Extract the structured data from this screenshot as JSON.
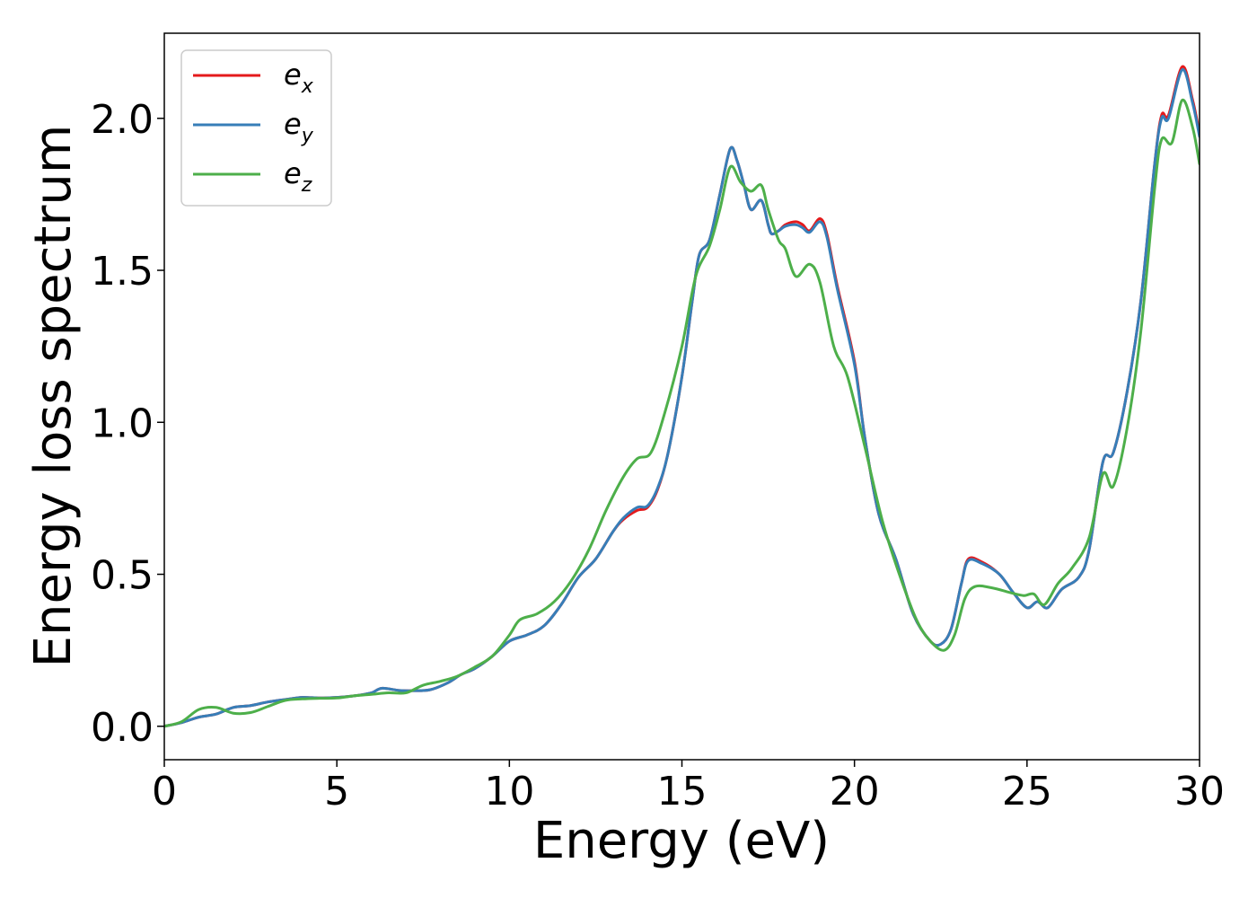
{
  "chart_data": {
    "type": "line",
    "xlabel": "Energy (eV)",
    "ylabel": "Energy loss spectrum",
    "xlim": [
      0,
      30
    ],
    "ylim": [
      -0.11,
      2.28
    ],
    "xticks": [
      0,
      5,
      10,
      15,
      20,
      25,
      30
    ],
    "xtick_labels": [
      "0",
      "5",
      "10",
      "15",
      "20",
      "25",
      "30"
    ],
    "yticks": [
      0.0,
      0.5,
      1.0,
      1.5,
      2.0
    ],
    "ytick_labels": [
      "0.0",
      "0.5",
      "1.0",
      "1.5",
      "2.0"
    ],
    "grid": false,
    "legend_position": "top-left",
    "series": [
      {
        "name": "e_x",
        "legend_main": "e",
        "legend_sub": "x",
        "color": "#e41a1c",
        "points": [
          [
            0,
            0.0
          ],
          [
            0.5,
            0.012
          ],
          [
            1,
            0.03
          ],
          [
            1.5,
            0.04
          ],
          [
            2,
            0.062
          ],
          [
            2.5,
            0.068
          ],
          [
            3,
            0.08
          ],
          [
            3.5,
            0.088
          ],
          [
            4,
            0.095
          ],
          [
            4.5,
            0.093
          ],
          [
            5,
            0.095
          ],
          [
            5.5,
            0.1
          ],
          [
            6,
            0.11
          ],
          [
            6.3,
            0.125
          ],
          [
            6.8,
            0.118
          ],
          [
            7.2,
            0.117
          ],
          [
            7.7,
            0.12
          ],
          [
            8.2,
            0.142
          ],
          [
            8.6,
            0.17
          ],
          [
            9,
            0.19
          ],
          [
            9.5,
            0.23
          ],
          [
            10,
            0.28
          ],
          [
            10.5,
            0.3
          ],
          [
            11,
            0.33
          ],
          [
            11.5,
            0.4
          ],
          [
            12,
            0.49
          ],
          [
            12.5,
            0.55
          ],
          [
            13,
            0.64
          ],
          [
            13.3,
            0.68
          ],
          [
            13.7,
            0.71
          ],
          [
            14,
            0.72
          ],
          [
            14.3,
            0.78
          ],
          [
            14.6,
            0.9
          ],
          [
            15,
            1.15
          ],
          [
            15.3,
            1.4
          ],
          [
            15.5,
            1.55
          ],
          [
            15.8,
            1.6
          ],
          [
            16.1,
            1.75
          ],
          [
            16.4,
            1.9
          ],
          [
            16.6,
            1.86
          ],
          [
            16.8,
            1.78
          ],
          [
            17,
            1.7
          ],
          [
            17.3,
            1.73
          ],
          [
            17.5,
            1.65
          ],
          [
            17.6,
            1.62
          ],
          [
            17.8,
            1.63
          ],
          [
            18,
            1.65
          ],
          [
            18.3,
            1.66
          ],
          [
            18.5,
            1.65
          ],
          [
            18.7,
            1.63
          ],
          [
            19,
            1.67
          ],
          [
            19.2,
            1.62
          ],
          [
            19.5,
            1.45
          ],
          [
            20,
            1.2
          ],
          [
            20.3,
            0.95
          ],
          [
            20.7,
            0.7
          ],
          [
            21.2,
            0.55
          ],
          [
            21.7,
            0.37
          ],
          [
            22.2,
            0.28
          ],
          [
            22.5,
            0.27
          ],
          [
            22.8,
            0.32
          ],
          [
            23.1,
            0.47
          ],
          [
            23.3,
            0.55
          ],
          [
            23.7,
            0.54
          ],
          [
            24.2,
            0.5
          ],
          [
            24.6,
            0.44
          ],
          [
            25,
            0.39
          ],
          [
            25.3,
            0.41
          ],
          [
            25.6,
            0.39
          ],
          [
            26,
            0.45
          ],
          [
            26.5,
            0.49
          ],
          [
            26.8,
            0.58
          ],
          [
            27.2,
            0.87
          ],
          [
            27.5,
            0.9
          ],
          [
            27.9,
            1.1
          ],
          [
            28.3,
            1.4
          ],
          [
            28.7,
            1.85
          ],
          [
            28.9,
            2.01
          ],
          [
            29.1,
            2.01
          ],
          [
            29.5,
            2.17
          ],
          [
            29.8,
            2.06
          ],
          [
            30,
            1.95
          ]
        ]
      },
      {
        "name": "e_y",
        "legend_main": "e",
        "legend_sub": "y",
        "color": "#377eb8",
        "points": [
          [
            0,
            0.0
          ],
          [
            0.5,
            0.012
          ],
          [
            1,
            0.03
          ],
          [
            1.5,
            0.04
          ],
          [
            2,
            0.062
          ],
          [
            2.5,
            0.068
          ],
          [
            3,
            0.08
          ],
          [
            3.5,
            0.088
          ],
          [
            4,
            0.095
          ],
          [
            4.5,
            0.093
          ],
          [
            5,
            0.095
          ],
          [
            5.5,
            0.1
          ],
          [
            6,
            0.11
          ],
          [
            6.3,
            0.125
          ],
          [
            6.8,
            0.118
          ],
          [
            7.2,
            0.117
          ],
          [
            7.7,
            0.12
          ],
          [
            8.2,
            0.142
          ],
          [
            8.6,
            0.17
          ],
          [
            9,
            0.19
          ],
          [
            9.5,
            0.23
          ],
          [
            10,
            0.28
          ],
          [
            10.5,
            0.3
          ],
          [
            11,
            0.33
          ],
          [
            11.5,
            0.4
          ],
          [
            12,
            0.49
          ],
          [
            12.5,
            0.55
          ],
          [
            13,
            0.64
          ],
          [
            13.3,
            0.685
          ],
          [
            13.7,
            0.72
          ],
          [
            14,
            0.725
          ],
          [
            14.3,
            0.785
          ],
          [
            14.6,
            0.9
          ],
          [
            15,
            1.15
          ],
          [
            15.3,
            1.4
          ],
          [
            15.5,
            1.55
          ],
          [
            15.8,
            1.6
          ],
          [
            16.1,
            1.75
          ],
          [
            16.4,
            1.9
          ],
          [
            16.6,
            1.86
          ],
          [
            16.8,
            1.78
          ],
          [
            17,
            1.7
          ],
          [
            17.3,
            1.73
          ],
          [
            17.5,
            1.65
          ],
          [
            17.6,
            1.62
          ],
          [
            17.8,
            1.63
          ],
          [
            18,
            1.645
          ],
          [
            18.3,
            1.65
          ],
          [
            18.5,
            1.64
          ],
          [
            18.7,
            1.625
          ],
          [
            19,
            1.66
          ],
          [
            19.2,
            1.61
          ],
          [
            19.5,
            1.44
          ],
          [
            20,
            1.19
          ],
          [
            20.3,
            0.95
          ],
          [
            20.7,
            0.7
          ],
          [
            21.2,
            0.55
          ],
          [
            21.7,
            0.37
          ],
          [
            22.2,
            0.28
          ],
          [
            22.5,
            0.27
          ],
          [
            22.8,
            0.32
          ],
          [
            23.1,
            0.47
          ],
          [
            23.3,
            0.545
          ],
          [
            23.7,
            0.535
          ],
          [
            24.2,
            0.5
          ],
          [
            24.6,
            0.44
          ],
          [
            25,
            0.39
          ],
          [
            25.3,
            0.41
          ],
          [
            25.6,
            0.39
          ],
          [
            26,
            0.45
          ],
          [
            26.5,
            0.49
          ],
          [
            26.8,
            0.58
          ],
          [
            27.2,
            0.87
          ],
          [
            27.5,
            0.9
          ],
          [
            27.9,
            1.1
          ],
          [
            28.3,
            1.4
          ],
          [
            28.7,
            1.85
          ],
          [
            28.9,
            2.0
          ],
          [
            29.1,
            2.0
          ],
          [
            29.5,
            2.16
          ],
          [
            29.8,
            2.05
          ],
          [
            30,
            1.94
          ]
        ]
      },
      {
        "name": "e_z",
        "legend_main": "e",
        "legend_sub": "z",
        "color": "#4daf4a",
        "points": [
          [
            0,
            0.0
          ],
          [
            0.5,
            0.015
          ],
          [
            1,
            0.055
          ],
          [
            1.5,
            0.062
          ],
          [
            2,
            0.043
          ],
          [
            2.5,
            0.045
          ],
          [
            3,
            0.065
          ],
          [
            3.5,
            0.085
          ],
          [
            4,
            0.09
          ],
          [
            4.5,
            0.092
          ],
          [
            5,
            0.093
          ],
          [
            5.5,
            0.1
          ],
          [
            6,
            0.105
          ],
          [
            6.5,
            0.11
          ],
          [
            7,
            0.11
          ],
          [
            7.5,
            0.135
          ],
          [
            8,
            0.148
          ],
          [
            8.5,
            0.165
          ],
          [
            9,
            0.195
          ],
          [
            9.5,
            0.23
          ],
          [
            10,
            0.3
          ],
          [
            10.3,
            0.35
          ],
          [
            10.8,
            0.37
          ],
          [
            11.3,
            0.41
          ],
          [
            11.8,
            0.48
          ],
          [
            12.3,
            0.58
          ],
          [
            12.8,
            0.71
          ],
          [
            13.3,
            0.82
          ],
          [
            13.7,
            0.88
          ],
          [
            14.1,
            0.9
          ],
          [
            14.5,
            1.03
          ],
          [
            15,
            1.25
          ],
          [
            15.4,
            1.48
          ],
          [
            15.8,
            1.58
          ],
          [
            16.1,
            1.7
          ],
          [
            16.4,
            1.84
          ],
          [
            16.7,
            1.79
          ],
          [
            17,
            1.76
          ],
          [
            17.3,
            1.78
          ],
          [
            17.5,
            1.7
          ],
          [
            17.8,
            1.6
          ],
          [
            18,
            1.57
          ],
          [
            18.3,
            1.48
          ],
          [
            18.7,
            1.52
          ],
          [
            19,
            1.46
          ],
          [
            19.4,
            1.25
          ],
          [
            19.8,
            1.15
          ],
          [
            20.3,
            0.92
          ],
          [
            20.8,
            0.68
          ],
          [
            21.3,
            0.5
          ],
          [
            21.8,
            0.35
          ],
          [
            22.2,
            0.28
          ],
          [
            22.6,
            0.25
          ],
          [
            22.9,
            0.3
          ],
          [
            23.2,
            0.42
          ],
          [
            23.5,
            0.46
          ],
          [
            24,
            0.455
          ],
          [
            24.5,
            0.44
          ],
          [
            24.9,
            0.43
          ],
          [
            25.2,
            0.435
          ],
          [
            25.5,
            0.4
          ],
          [
            25.9,
            0.47
          ],
          [
            26.3,
            0.52
          ],
          [
            26.8,
            0.62
          ],
          [
            27.2,
            0.83
          ],
          [
            27.5,
            0.79
          ],
          [
            27.9,
            0.98
          ],
          [
            28.3,
            1.3
          ],
          [
            28.7,
            1.77
          ],
          [
            28.9,
            1.93
          ],
          [
            29.2,
            1.92
          ],
          [
            29.5,
            2.06
          ],
          [
            29.8,
            1.97
          ],
          [
            30,
            1.85
          ]
        ]
      }
    ]
  }
}
